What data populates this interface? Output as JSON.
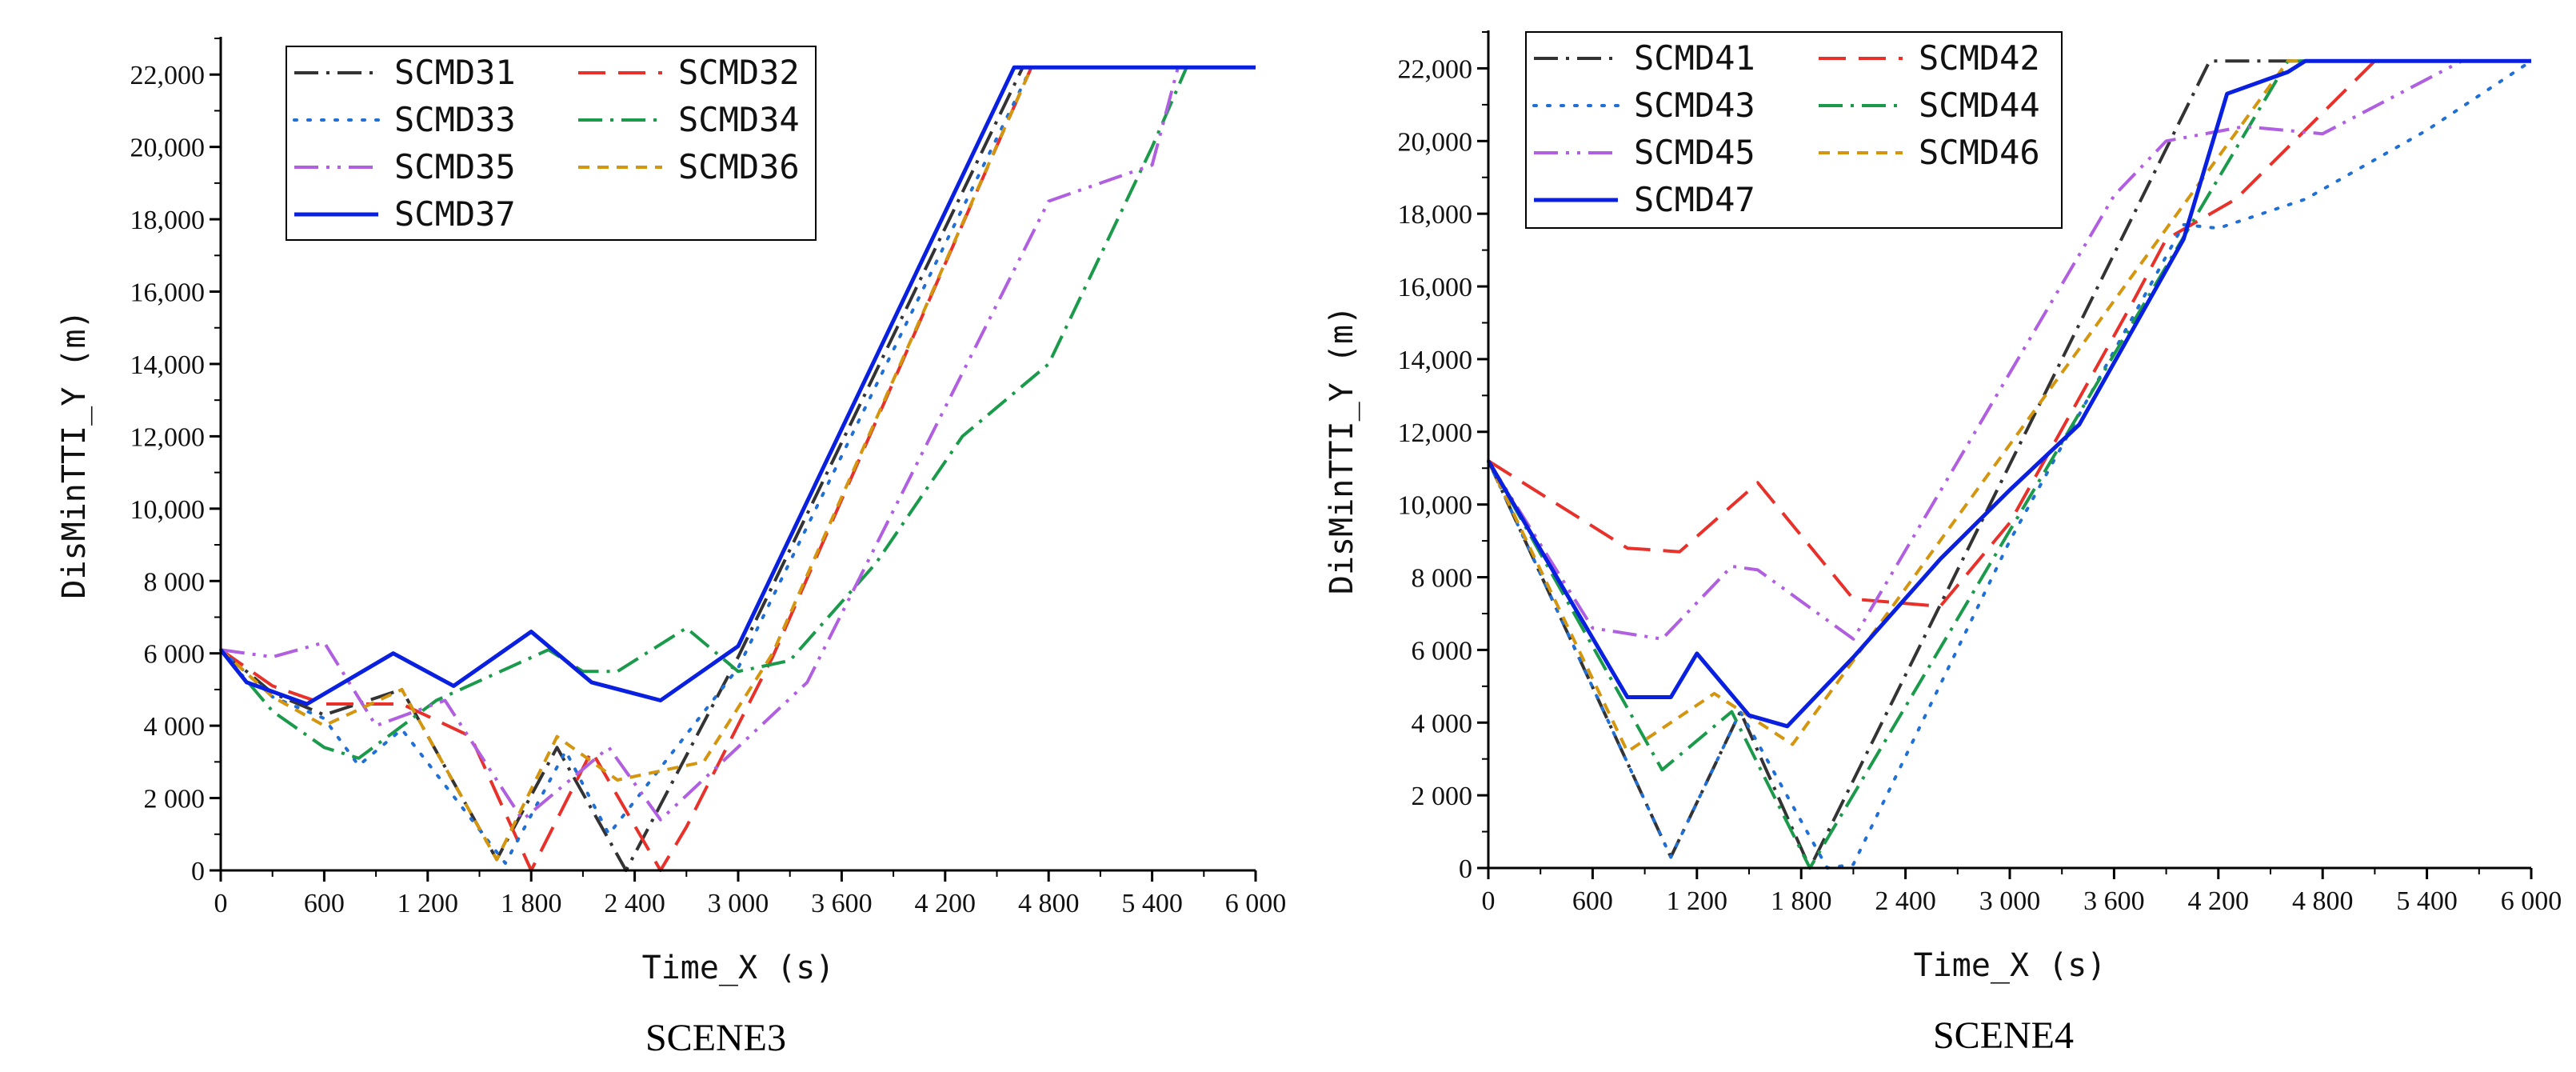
{
  "chart_data": [
    {
      "type": "line",
      "title": "SCENE3",
      "xlabel": "Time_X (s)",
      "ylabel": "DisMinTTI_Y (m)",
      "xlim": [
        0,
        6000
      ],
      "ylim": [
        0,
        23000
      ],
      "xticks": [
        0,
        600,
        1200,
        1800,
        2400,
        3000,
        3600,
        4200,
        4800,
        5400,
        6000
      ],
      "xtick_labels": [
        "0",
        "600",
        "1 200",
        "1 800",
        "2 400",
        "3 000",
        "3 600",
        "4 200",
        "4 800",
        "5 400",
        "6 000"
      ],
      "yticks": [
        0,
        2000,
        4000,
        6000,
        8000,
        10000,
        12000,
        14000,
        16000,
        18000,
        20000,
        22000
      ],
      "ytick_labels": [
        "0",
        "2 000",
        "4 000",
        "6 000",
        "8 000",
        "10,000",
        "12,000",
        "14,000",
        "16,000",
        "18,000",
        "20,000",
        "22,000"
      ],
      "legend_position": "top-left",
      "series": [
        {
          "name": "SCMD31",
          "color": "#333333",
          "dash": "dashdot",
          "x": [
            0,
            300,
            600,
            1050,
            1600,
            1950,
            2350,
            3000,
            4650,
            4750,
            6000
          ],
          "y": [
            6100,
            4900,
            4300,
            5000,
            300,
            3400,
            0,
            5900,
            22200,
            22200,
            22200
          ]
        },
        {
          "name": "SCMD32",
          "color": "#e8312a",
          "dash": "dashed",
          "x": [
            0,
            300,
            600,
            1050,
            1450,
            1800,
            2150,
            2550,
            2700,
            3200,
            4700,
            4750,
            6000
          ],
          "y": [
            6100,
            5100,
            4600,
            4600,
            3700,
            0,
            3300,
            0,
            1200,
            5900,
            22200,
            22200,
            22200
          ]
        },
        {
          "name": "SCMD33",
          "color": "#1f6fd6",
          "dash": "dotted",
          "x": [
            0,
            300,
            600,
            800,
            1050,
            1650,
            2000,
            2250,
            3000,
            4700,
            4750,
            6000
          ],
          "y": [
            6100,
            4800,
            4200,
            2900,
            3900,
            200,
            3300,
            1000,
            5600,
            22200,
            22200,
            22200
          ]
        },
        {
          "name": "SCMD34",
          "color": "#1a9a4a",
          "dash": "dashdot",
          "x": [
            0,
            300,
            600,
            800,
            1250,
            1900,
            2100,
            2300,
            2700,
            3000,
            3300,
            3800,
            4300,
            4800,
            5400,
            5600
          ],
          "y": [
            6100,
            4400,
            3400,
            3100,
            4700,
            6100,
            5500,
            5500,
            6700,
            5500,
            5800,
            8500,
            12000,
            14000,
            20000,
            22200
          ]
        },
        {
          "name": "SCMD35",
          "color": "#b05fe0",
          "dash": "dashdotdot",
          "x": [
            0,
            300,
            600,
            900,
            1300,
            1750,
            2250,
            2550,
            3400,
            4800,
            5400,
            5550,
            6000
          ],
          "y": [
            6100,
            5900,
            6300,
            4000,
            4700,
            1400,
            3400,
            1400,
            5200,
            18500,
            19500,
            22200,
            22200
          ]
        },
        {
          "name": "SCMD36",
          "color": "#d4950f",
          "dash": "shortdash",
          "x": [
            0,
            300,
            600,
            1050,
            1600,
            1950,
            2300,
            2800,
            3200,
            4700,
            4750,
            6000
          ],
          "y": [
            6100,
            4800,
            4000,
            5000,
            300,
            3700,
            2500,
            3000,
            6000,
            22200,
            22200,
            22200
          ]
        },
        {
          "name": "SCMD37",
          "color": "#0a20e0",
          "dash": "solid",
          "x": [
            0,
            150,
            500,
            1000,
            1350,
            1800,
            2150,
            2550,
            3000,
            4600,
            6000
          ],
          "y": [
            6100,
            5200,
            4600,
            6000,
            5100,
            6600,
            5200,
            4700,
            6200,
            22200,
            22200
          ]
        }
      ]
    },
    {
      "type": "line",
      "title": "SCENE4",
      "xlabel": "Time_X (s)",
      "ylabel": "DisMinTTI_Y (m)",
      "xlim": [
        0,
        6000
      ],
      "ylim": [
        0,
        23000
      ],
      "xticks": [
        0,
        600,
        1200,
        1800,
        2400,
        3000,
        3600,
        4200,
        4800,
        5400,
        6000
      ],
      "xtick_labels": [
        "0",
        "600",
        "1 200",
        "1 800",
        "2 400",
        "3 000",
        "3 600",
        "4 200",
        "4 800",
        "5 400",
        "6 000"
      ],
      "yticks": [
        0,
        2000,
        4000,
        6000,
        8000,
        10000,
        12000,
        14000,
        16000,
        18000,
        20000,
        22000
      ],
      "ytick_labels": [
        "0",
        "2 000",
        "4 000",
        "6 000",
        "8 000",
        "10,000",
        "12,000",
        "14,000",
        "16,000",
        "18,000",
        "20,000",
        "22,000"
      ],
      "legend_position": "top-left",
      "series": [
        {
          "name": "SCMD41",
          "color": "#333333",
          "dash": "dashdot",
          "x": [
            0,
            1050,
            1450,
            1850,
            4150,
            4250,
            6000
          ],
          "y": [
            11200,
            300,
            4300,
            0,
            22200,
            22200,
            22200
          ]
        },
        {
          "name": "SCMD42",
          "color": "#e8312a",
          "dash": "dashed",
          "x": [
            0,
            400,
            800,
            1100,
            1550,
            2100,
            2600,
            3000,
            3700,
            3900,
            4300,
            5100,
            6000
          ],
          "y": [
            11200,
            10000,
            8800,
            8700,
            10600,
            7400,
            7200,
            9500,
            15500,
            17300,
            18400,
            22200,
            22200
          ]
        },
        {
          "name": "SCMD43",
          "color": "#1f6fd6",
          "dash": "dotted",
          "x": [
            0,
            1050,
            1450,
            1950,
            2100,
            3000,
            4000,
            4200,
            4700,
            5400,
            6000
          ],
          "y": [
            11200,
            300,
            4300,
            0,
            100,
            9000,
            17700,
            17600,
            18400,
            20300,
            22200
          ]
        },
        {
          "name": "SCMD44",
          "color": "#1a9a4a",
          "dash": "dashdot",
          "x": [
            0,
            1000,
            1400,
            1850,
            4600,
            6000
          ],
          "y": [
            11200,
            2700,
            4300,
            0,
            22200,
            22200
          ]
        },
        {
          "name": "SCMD45",
          "color": "#b05fe0",
          "dash": "dashdotdot",
          "x": [
            0,
            600,
            1000,
            1400,
            1550,
            2100,
            3600,
            3900,
            4350,
            4800,
            5600,
            6000
          ],
          "y": [
            11200,
            6600,
            6300,
            8300,
            8200,
            6300,
            18500,
            20000,
            20400,
            20200,
            22200,
            22200
          ]
        },
        {
          "name": "SCMD46",
          "color": "#d4950f",
          "dash": "shortdash",
          "x": [
            0,
            800,
            1300,
            1750,
            4600,
            6000
          ],
          "y": [
            11200,
            3200,
            4800,
            3400,
            22200,
            22200
          ]
        },
        {
          "name": "SCMD47",
          "color": "#0a20e0",
          "dash": "solid",
          "x": [
            0,
            800,
            1050,
            1200,
            1500,
            1720,
            2100,
            2600,
            3000,
            3400,
            4000,
            4250,
            4600,
            4700,
            6000
          ],
          "y": [
            11200,
            4700,
            4700,
            5900,
            4200,
            3900,
            5800,
            8500,
            10400,
            12200,
            17300,
            21300,
            21900,
            22200,
            22200
          ]
        }
      ]
    }
  ]
}
